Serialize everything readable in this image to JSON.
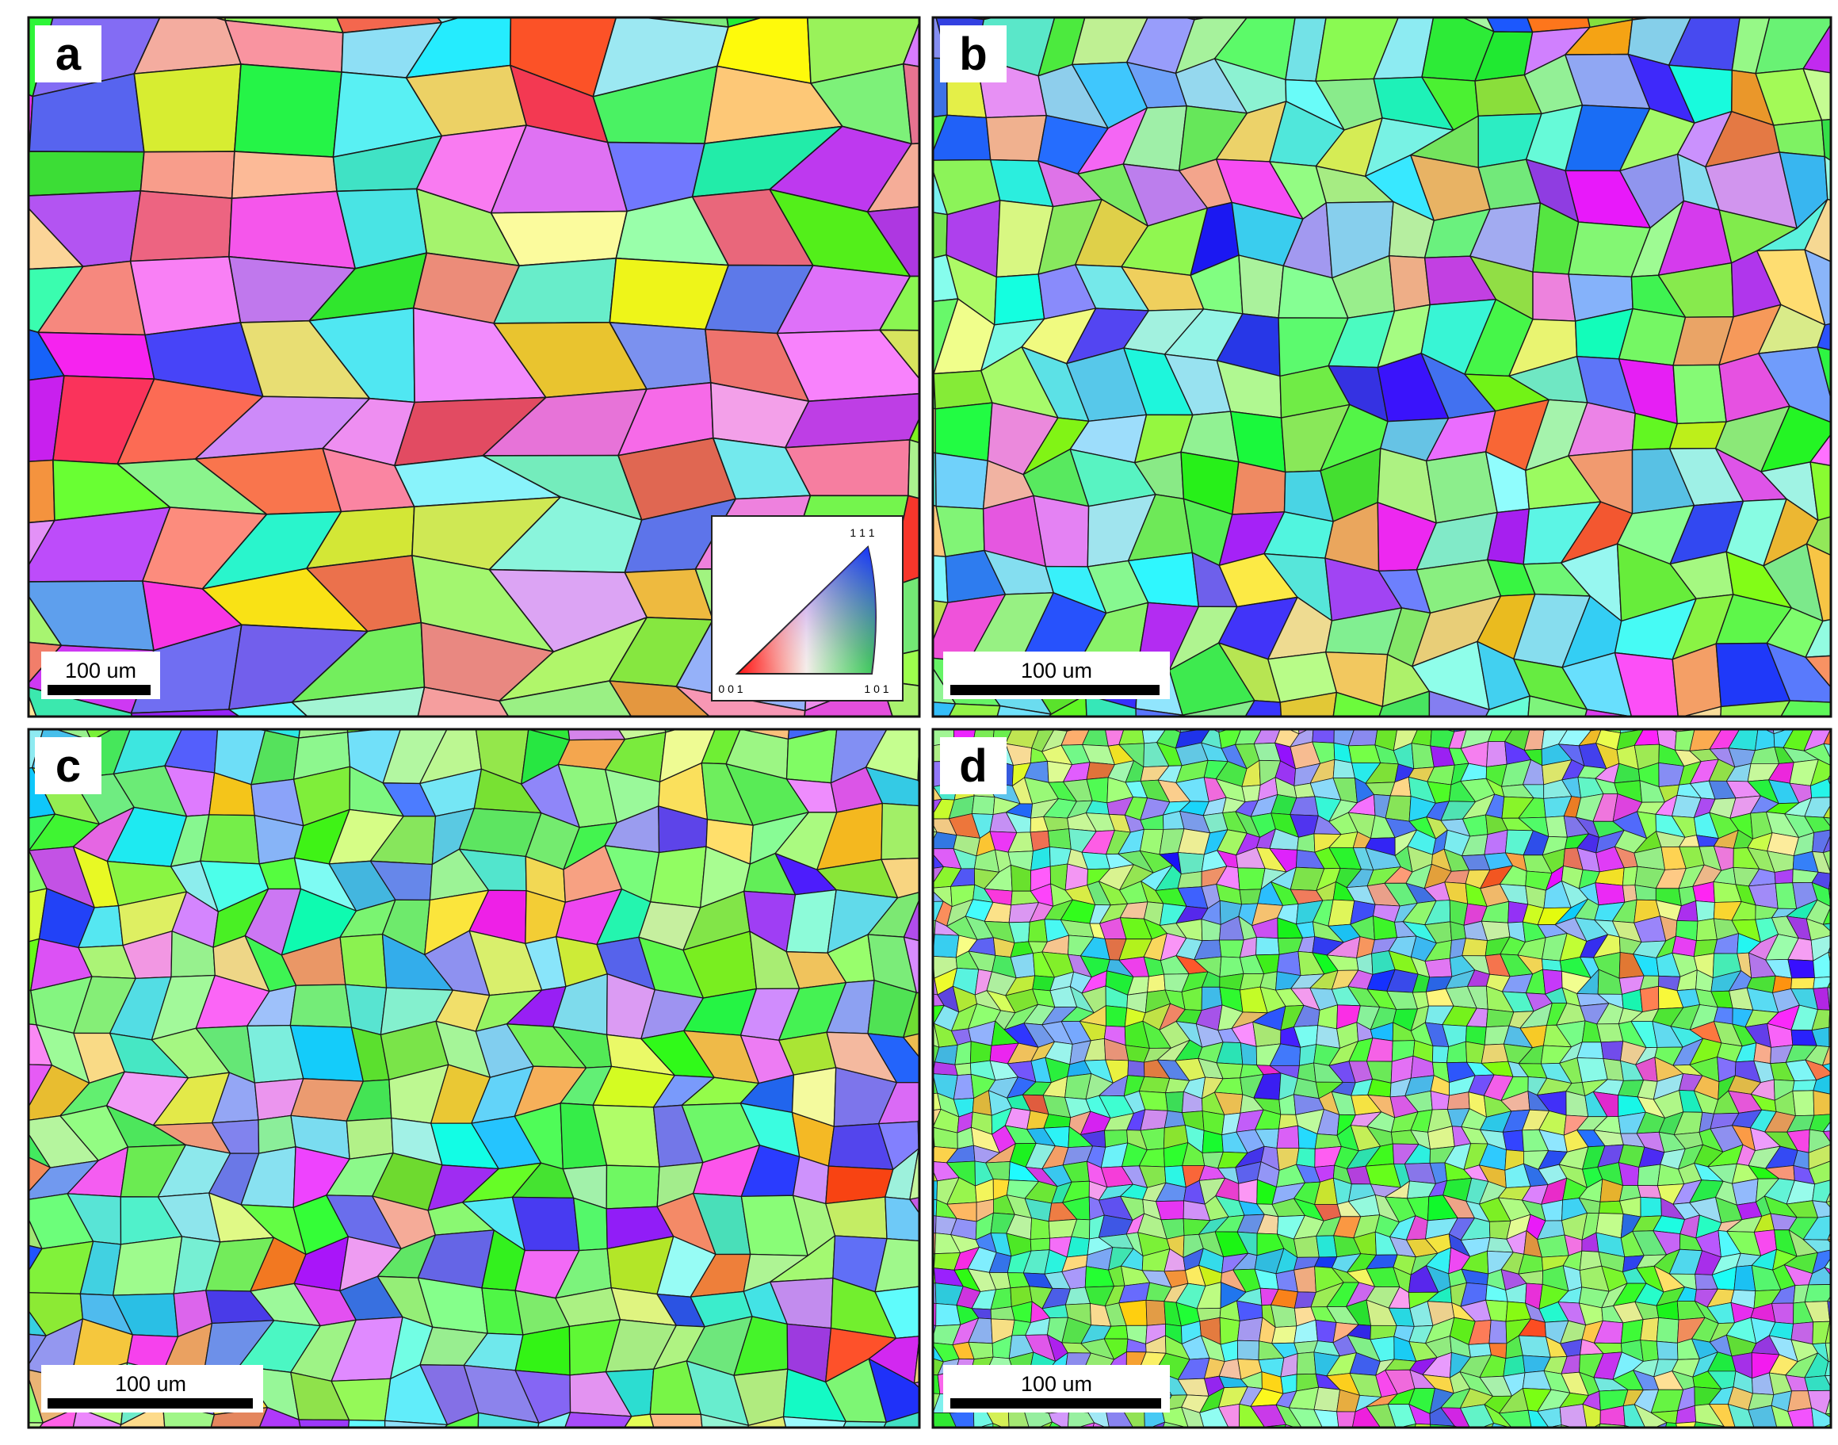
{
  "panels": [
    {
      "label": "a",
      "scale_bar": "100 um",
      "legend": {
        "top": "1 1 1",
        "bottom_left": "0 0 1",
        "bottom_right": "1 0 1"
      }
    },
    {
      "label": "b",
      "scale_bar": "100 um"
    },
    {
      "label": "c",
      "scale_bar": "100 um"
    },
    {
      "label": "d",
      "scale_bar": "100 um"
    }
  ]
}
